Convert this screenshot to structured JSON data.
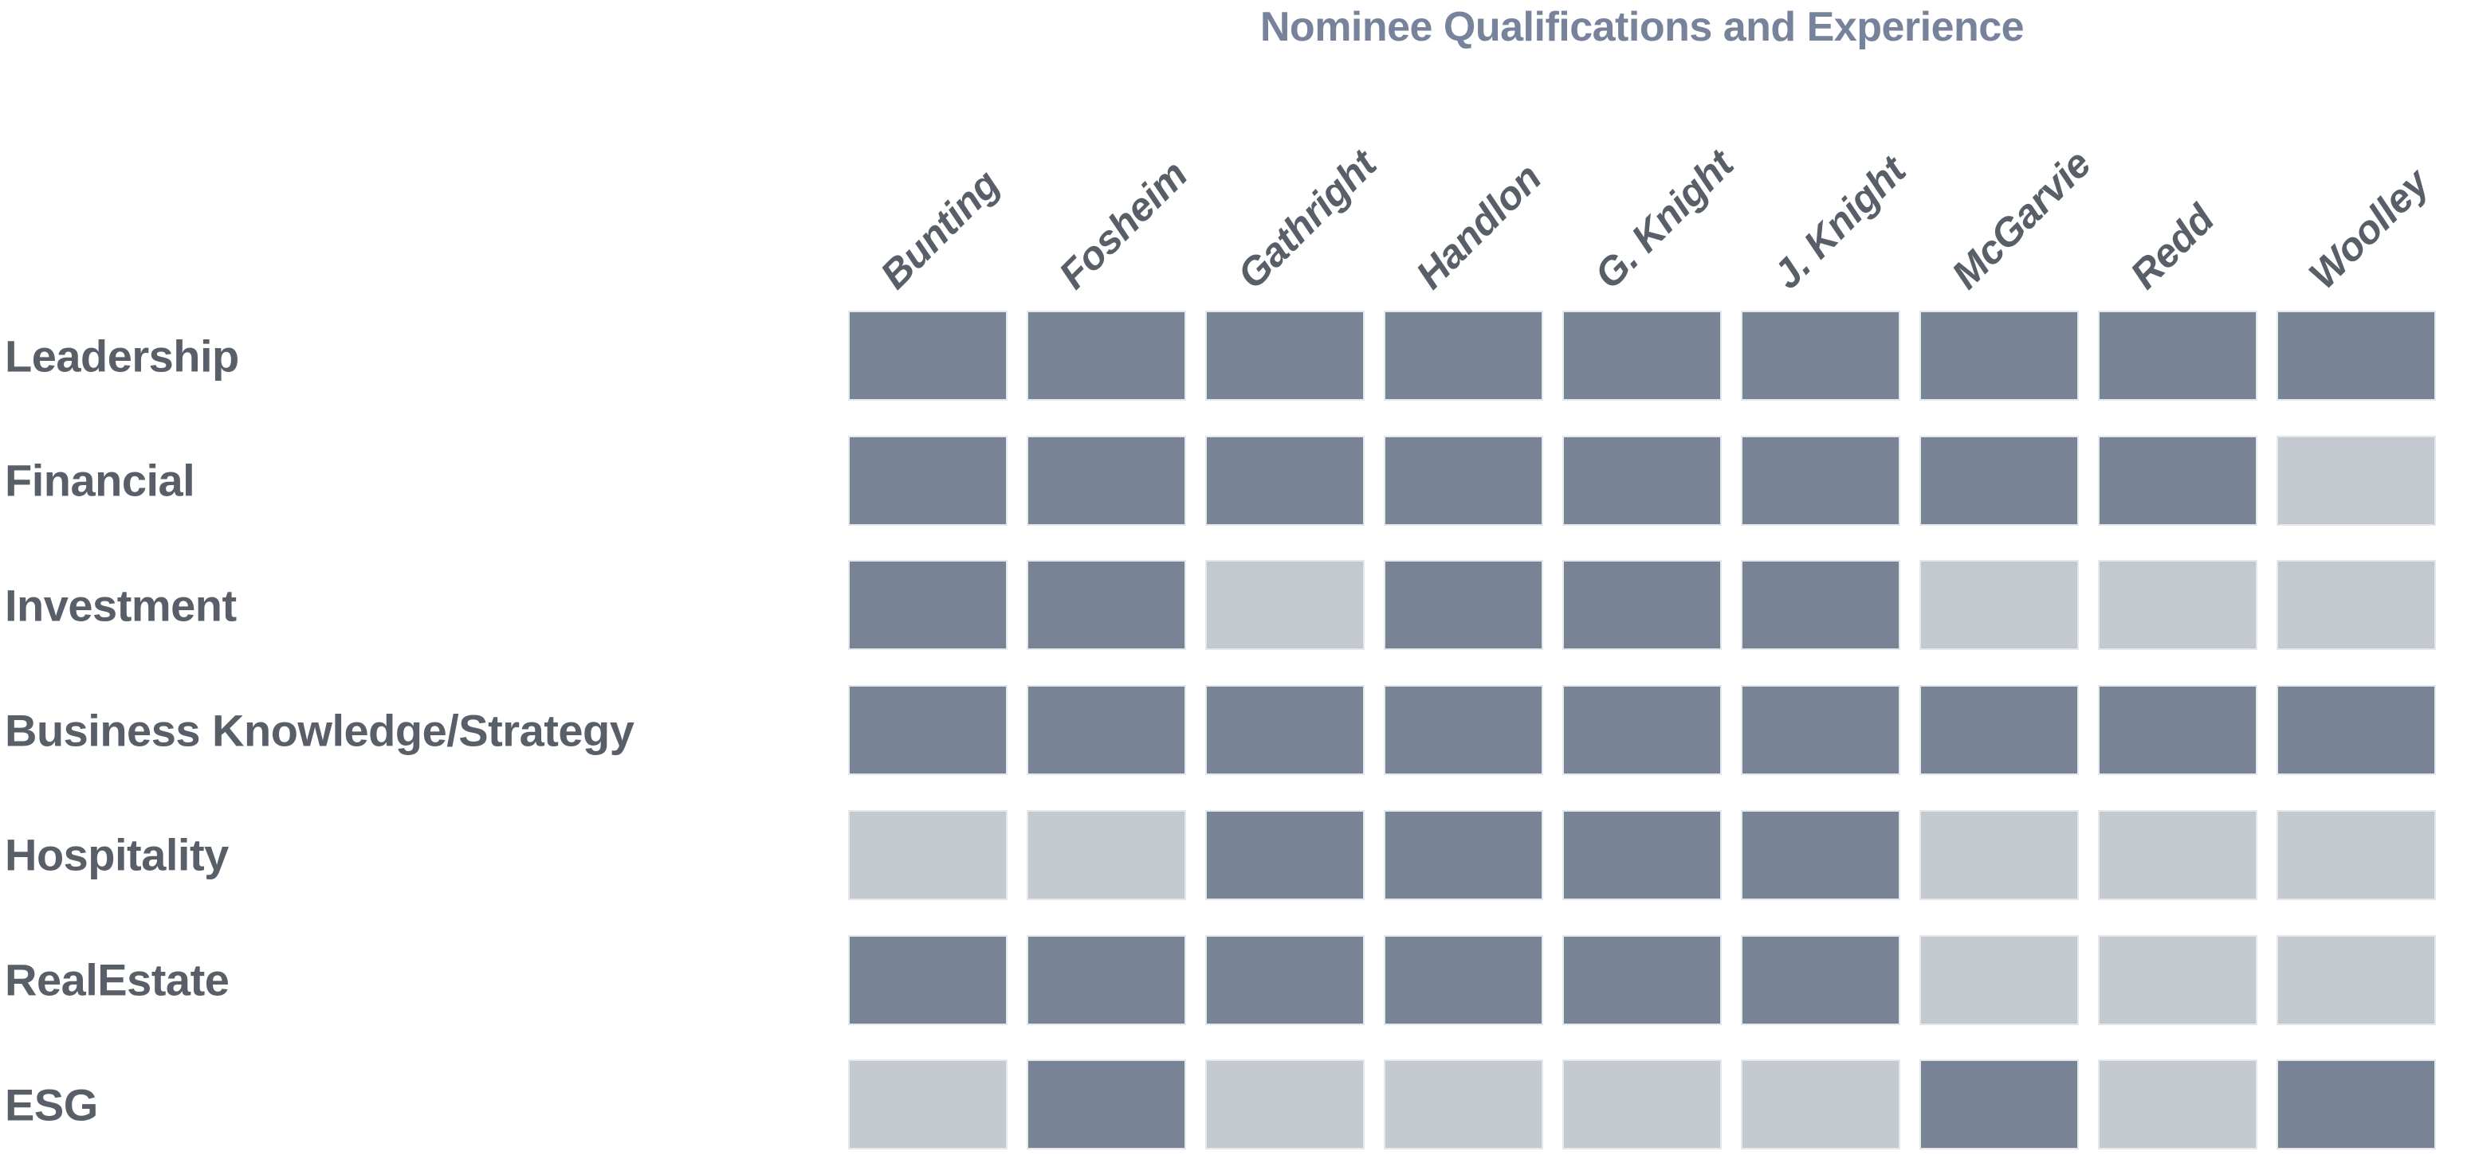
{
  "title": "Nominee Qualifications and Experience",
  "colors": {
    "cell_on": "#788496",
    "cell_off": "#C4C8CF",
    "title_text": "#77839B",
    "label_text": "#595F68",
    "cell_border": "#E4E7EC"
  },
  "chart_data": {
    "type": "heatmap",
    "title": "Nominee Qualifications and Experience",
    "columns": [
      "Bunting",
      "Fosheim",
      "Gathright",
      "Handlon",
      "G. Knight",
      "J. Knight",
      "McGarvie",
      "Redd",
      "Woolley"
    ],
    "rows": [
      "Leadership",
      "Financial",
      "Investment",
      "Business Knowledge/Strategy",
      "Hospitality",
      "RealEstate",
      "ESG"
    ],
    "values": [
      [
        1,
        1,
        1,
        1,
        1,
        1,
        1,
        1,
        1
      ],
      [
        1,
        1,
        1,
        1,
        1,
        1,
        1,
        1,
        0
      ],
      [
        1,
        1,
        0,
        1,
        1,
        1,
        0,
        0,
        0
      ],
      [
        1,
        1,
        1,
        1,
        1,
        1,
        1,
        1,
        1
      ],
      [
        0,
        0,
        1,
        1,
        1,
        1,
        0,
        0,
        0
      ],
      [
        1,
        1,
        1,
        1,
        1,
        1,
        0,
        0,
        0
      ],
      [
        0,
        1,
        0,
        0,
        0,
        0,
        1,
        0,
        1
      ]
    ],
    "value_meaning": {
      "1": "nominee has qualification (dark cell)",
      "0": "nominee lacks qualification (light cell)"
    },
    "legend_position": "none",
    "grid": false,
    "column_header_rotation_deg": 45
  }
}
